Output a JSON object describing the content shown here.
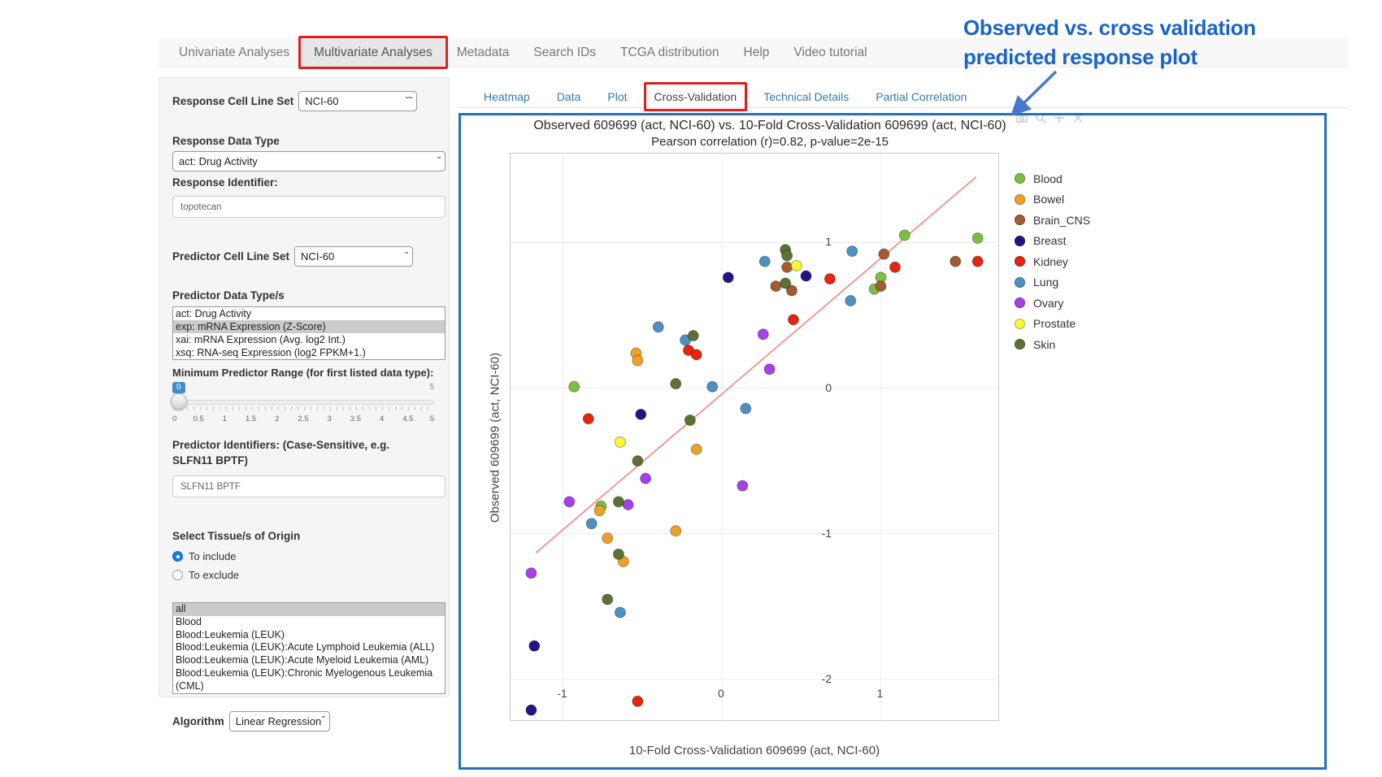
{
  "annotation": {
    "line1": "Observed vs. cross validation",
    "line2": "predicted response plot",
    "text_color": "#1a64c8",
    "arrow_color": "#4a77cd"
  },
  "nav": {
    "items": [
      {
        "label": "Univariate Analyses",
        "active": false,
        "red_box": false
      },
      {
        "label": "Multivariate Analyses",
        "active": true,
        "red_box": true
      },
      {
        "label": "Metadata",
        "active": false,
        "red_box": false
      },
      {
        "label": "Search IDs",
        "active": false,
        "red_box": false
      },
      {
        "label": "TCGA distribution",
        "active": false,
        "red_box": false
      },
      {
        "label": "Help",
        "active": false,
        "red_box": false
      },
      {
        "label": "Video tutorial",
        "active": false,
        "red_box": false
      }
    ]
  },
  "sidebar": {
    "response_cell_line_set": {
      "label": "Response Cell Line Set",
      "value": "NCI-60"
    },
    "response_data_type": {
      "label": "Response Data Type",
      "value": "act: Drug Activity"
    },
    "response_identifier": {
      "label": "Response Identifier:",
      "value": "topotecan"
    },
    "predictor_cell_line_set": {
      "label": "Predictor Cell Line Set",
      "value": "NCI-60"
    },
    "predictor_data_types": {
      "label": "Predictor Data Type/s",
      "options": [
        {
          "label": "act: Drug Activity",
          "selected": false
        },
        {
          "label": "exp: mRNA Expression (Z-Score)",
          "selected": true
        },
        {
          "label": "xai: mRNA Expression (Avg. log2 Int.)",
          "selected": false
        },
        {
          "label": "xsq: RNA-seq Expression (log2 FPKM+1.)",
          "selected": false
        }
      ]
    },
    "min_predictor_range": {
      "label": "Minimum Predictor Range (for first listed data type):",
      "value": "0",
      "max_label": "5",
      "tick_labels": [
        "0",
        "0.5",
        "1",
        "1.5",
        "2",
        "2.5",
        "3",
        "3.5",
        "4",
        "4.5",
        "5"
      ]
    },
    "predictor_identifiers": {
      "label": "Predictor Identifiers: (Case-Sensitive, e.g. SLFN11 BPTF)",
      "value": "SLFN11 BPTF"
    },
    "tissue_origin": {
      "label": "Select Tissue/s of Origin",
      "radios": [
        {
          "label": "To include",
          "selected": true
        },
        {
          "label": "To exclude",
          "selected": false
        }
      ],
      "options": [
        {
          "label": "all",
          "selected": true,
          "wrap": true
        },
        {
          "label": "Blood",
          "selected": false,
          "wrap": true
        },
        {
          "label": "Blood:Leukemia (LEUK)",
          "selected": false,
          "wrap": true
        },
        {
          "label": "Blood:Leukemia (LEUK):Acute Lymphoid Leukemia (ALL)",
          "selected": false,
          "wrap": true
        },
        {
          "label": "Blood:Leukemia (LEUK):Acute Myeloid Leukemia (AML)",
          "selected": false,
          "wrap": false
        },
        {
          "label": "Blood:Leukemia (LEUK):Chronic Myelogenous Leukemia (CML)",
          "selected": false,
          "wrap": true
        }
      ]
    },
    "algorithm": {
      "label": "Algorithm",
      "value": "Linear Regression"
    }
  },
  "subtabs": {
    "items": [
      {
        "label": "Heatmap",
        "active": false,
        "red_box": false
      },
      {
        "label": "Data",
        "active": false,
        "red_box": false
      },
      {
        "label": "Plot",
        "active": false,
        "red_box": false
      },
      {
        "label": "Cross-Validation",
        "active": true,
        "red_box": true
      },
      {
        "label": "Technical Details",
        "active": false,
        "red_box": false
      },
      {
        "label": "Partial Correlation",
        "active": false,
        "red_box": false
      }
    ]
  },
  "chart_data": {
    "type": "scatter",
    "title": "Observed 609699 (act, NCI-60) vs. 10-Fold Cross-Validation 609699 (act, NCI-60)",
    "subtitle": "Pearson correlation (r)=0.82, p-value=2e-15",
    "xlabel": "10-Fold Cross-Validation 609699 (act, NCI-60)",
    "ylabel": "Observed 609699 (act, NCI-60)",
    "xlim": [
      -1.33,
      1.75
    ],
    "ylim": [
      -2.29,
      1.61
    ],
    "xticks": [
      -1,
      0,
      1
    ],
    "yticks": [
      1,
      0,
      -1,
      -2
    ],
    "grid": true,
    "legend_position": "right",
    "regression_line": {
      "x1": -1.17,
      "y1": -1.13,
      "x2": 1.6,
      "y2": 1.45,
      "color": "#f8837b"
    },
    "series": [
      {
        "name": "Blood",
        "color": "#7cbe41",
        "points": [
          [
            -0.93,
            0.01
          ],
          [
            0.96,
            0.68
          ],
          [
            1.0,
            0.76
          ],
          [
            1.15,
            1.05
          ],
          [
            1.61,
            1.03
          ],
          [
            -0.76,
            -0.81
          ]
        ]
      },
      {
        "name": "Bowel",
        "color": "#efa127",
        "points": [
          [
            -0.54,
            0.24
          ],
          [
            -0.53,
            0.19
          ],
          [
            -0.16,
            -0.42
          ],
          [
            -0.77,
            -0.84
          ],
          [
            -0.29,
            -0.98
          ],
          [
            -0.72,
            -1.03
          ],
          [
            -0.62,
            -1.19
          ]
        ]
      },
      {
        "name": "Brain_CNS",
        "color": "#a35b33",
        "points": [
          [
            0.41,
            0.83
          ],
          [
            0.34,
            0.7
          ],
          [
            0.44,
            0.67
          ],
          [
            1.02,
            0.92
          ],
          [
            1.0,
            0.7
          ],
          [
            1.47,
            0.87
          ]
        ]
      },
      {
        "name": "Breast",
        "color": "#221486",
        "points": [
          [
            0.04,
            0.76
          ],
          [
            0.53,
            0.77
          ],
          [
            -0.51,
            -0.18
          ],
          [
            -1.18,
            -1.77
          ],
          [
            -1.2,
            -2.21
          ]
        ]
      },
      {
        "name": "Kidney",
        "color": "#e5250e",
        "points": [
          [
            -0.21,
            0.26
          ],
          [
            -0.16,
            0.23
          ],
          [
            0.68,
            0.75
          ],
          [
            0.45,
            0.47
          ],
          [
            1.09,
            0.83
          ],
          [
            1.61,
            0.87
          ],
          [
            -0.84,
            -0.21
          ],
          [
            -0.53,
            -2.15
          ]
        ]
      },
      {
        "name": "Lung",
        "color": "#4e90c1",
        "points": [
          [
            -0.4,
            0.42
          ],
          [
            -0.23,
            0.33
          ],
          [
            -0.06,
            0.01
          ],
          [
            0.27,
            0.87
          ],
          [
            0.82,
            0.94
          ],
          [
            0.81,
            0.6
          ],
          [
            0.15,
            -0.14
          ],
          [
            -0.82,
            -0.93
          ],
          [
            -0.64,
            -1.54
          ]
        ]
      },
      {
        "name": "Ovary",
        "color": "#a640e8",
        "points": [
          [
            0.26,
            0.37
          ],
          [
            0.3,
            0.13
          ],
          [
            -0.48,
            -0.62
          ],
          [
            0.13,
            -0.67
          ],
          [
            -0.96,
            -0.78
          ],
          [
            -0.59,
            -0.8
          ],
          [
            -1.2,
            -1.27
          ]
        ]
      },
      {
        "name": "Prostate",
        "color": "#f7f73a",
        "points": [
          [
            0.47,
            0.84
          ],
          [
            -0.64,
            -0.37
          ]
        ]
      },
      {
        "name": "Skin",
        "color": "#5c7233",
        "points": [
          [
            -0.18,
            0.36
          ],
          [
            -0.29,
            0.03
          ],
          [
            0.4,
            0.95
          ],
          [
            0.41,
            0.91
          ],
          [
            0.4,
            0.72
          ],
          [
            -0.2,
            -0.22
          ],
          [
            -0.53,
            -0.5
          ],
          [
            -0.65,
            -0.78
          ],
          [
            -0.65,
            -1.14
          ],
          [
            -0.72,
            -1.45
          ]
        ]
      }
    ]
  }
}
